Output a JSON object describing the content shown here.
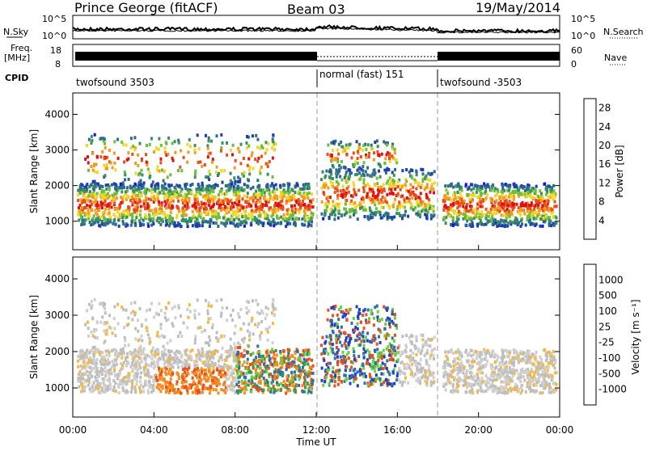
{
  "header": {
    "station": "Prince George (fitACF)",
    "beam": "Beam 03",
    "date": "19/May/2014"
  },
  "top_panels": {
    "nsky_label": "N.Sky",
    "nsky_ticks": [
      "10^5",
      "10^0"
    ],
    "nsearch_label": "N.Search",
    "nsearch_ticks": [
      "10^5",
      "10^0"
    ],
    "freq_label": "Freq.",
    "freq_unit": "[MHz]",
    "freq_ticks": [
      "18",
      "8"
    ],
    "nave_label": "Nave",
    "nave_ticks": [
      "60",
      "0"
    ],
    "cpid_label": "CPID",
    "cpid_segments": [
      {
        "label": "twofsound 3503",
        "start_h": 0,
        "end_h": 12
      },
      {
        "label": "normal (fast) 151",
        "start_h": 12,
        "end_h": 18
      },
      {
        "label": "twofsound -3503",
        "start_h": 18,
        "end_h": 24
      }
    ]
  },
  "colors": {
    "power_scale": [
      "#1010e0",
      "#1e3fa8",
      "#2d6b8e",
      "#3a8f5e",
      "#6cbf3c",
      "#f0d82a",
      "#f59a1e",
      "#e8501c",
      "#e01010"
    ],
    "velocity_scale": [
      "#e01010",
      "#e8501c",
      "#f58c1e",
      "#f5b83c",
      "#cfcfcf",
      "#bdbdbd",
      "#6ccf3c",
      "#2f9f4f",
      "#2f6fa8",
      "#1e3fc8"
    ]
  },
  "chart_data": [
    {
      "type": "heatmap",
      "name": "Power",
      "xlabel": "",
      "ylabel": "Slant Range [km]",
      "xlim": [
        0,
        24
      ],
      "ylim": [
        200,
        4600
      ],
      "yticks": [
        "1000",
        "2000",
        "3000",
        "4000"
      ],
      "colorbar": {
        "label": "Power [dB]",
        "ticks": [
          "4",
          "8",
          "12",
          "16",
          "20",
          "24",
          "28"
        ],
        "range": [
          0,
          30
        ]
      },
      "mode_changes_h": [
        12,
        18
      ]
    },
    {
      "type": "heatmap",
      "name": "Velocity",
      "xlabel": "Time UT",
      "ylabel": "Slant Range [km]",
      "xlim": [
        0,
        24
      ],
      "ylim": [
        200,
        4600
      ],
      "xticks": [
        "00:00",
        "04:00",
        "08:00",
        "12:00",
        "16:00",
        "20:00",
        "00:00"
      ],
      "yticks": [
        "1000",
        "2000",
        "3000",
        "4000"
      ],
      "colorbar": {
        "label": "Velocity [m s⁻¹]",
        "ticks": [
          "1000",
          "500",
          "100",
          "25",
          "-25",
          "-100",
          "-500",
          "-1000"
        ]
      },
      "mode_changes_h": [
        12,
        18
      ]
    }
  ]
}
